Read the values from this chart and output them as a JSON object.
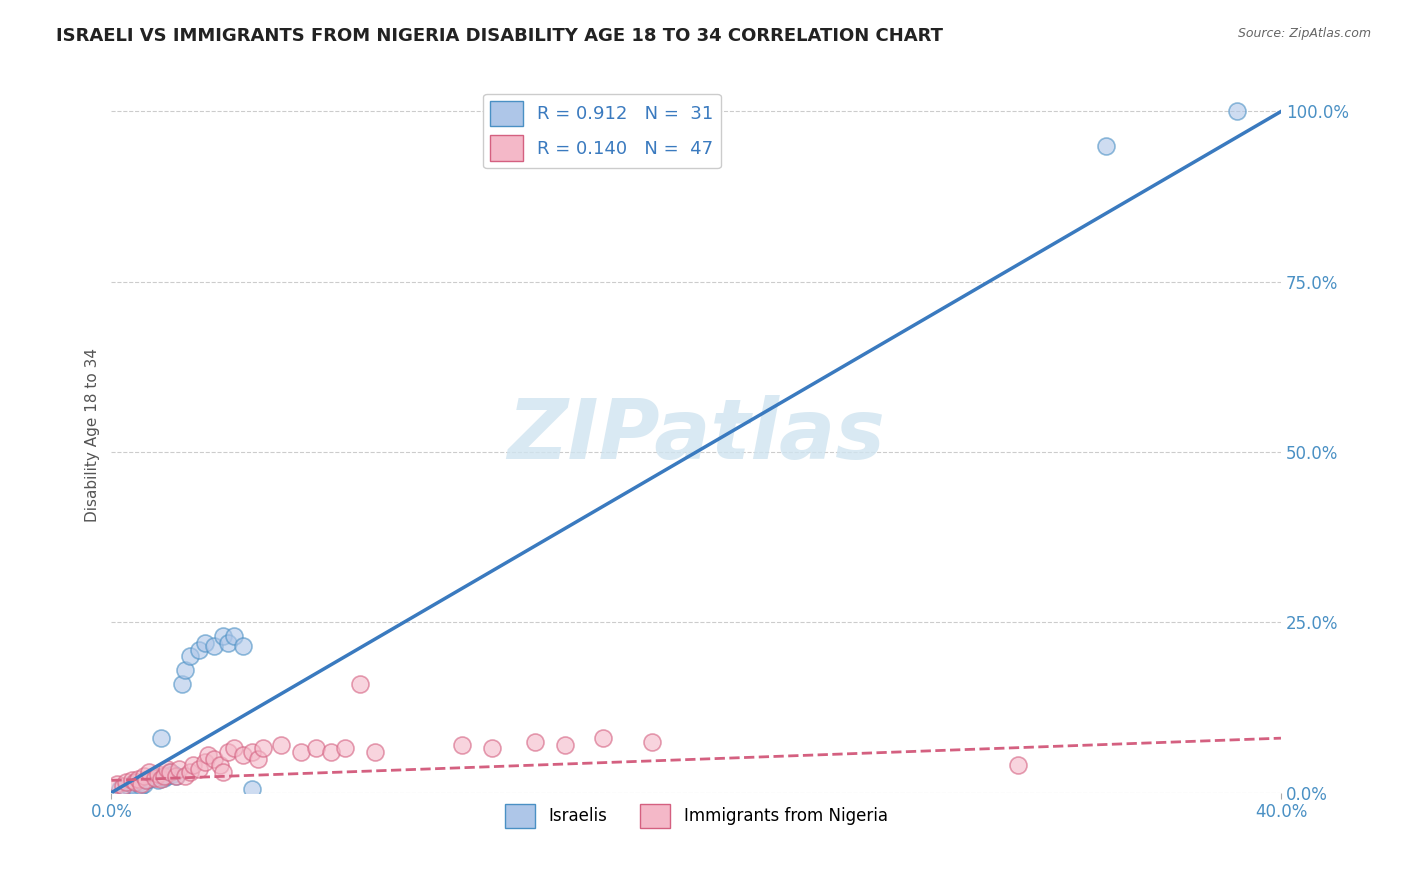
{
  "title": "ISRAELI VS IMMIGRANTS FROM NIGERIA DISABILITY AGE 18 TO 34 CORRELATION CHART",
  "source": "Source: ZipAtlas.com",
  "ylabel": "Disability Age 18 to 34",
  "xlim": [
    0.0,
    0.4
  ],
  "ylim": [
    0.0,
    1.05
  ],
  "xticks": [
    0.0,
    0.4
  ],
  "xtick_labels": [
    "0.0%",
    "40.0%"
  ],
  "yticks_right": [
    0.0,
    0.25,
    0.5,
    0.75,
    1.0
  ],
  "ytick_labels_right": [
    "0.0%",
    "25.0%",
    "50.0%",
    "75.0%",
    "100.0%"
  ],
  "legend_r1": "R = 0.912",
  "legend_n1": "N =  31",
  "legend_r2": "R = 0.140",
  "legend_n2": "N =  47",
  "blue_scatter_color": "#aec6e8",
  "blue_edge_color": "#4a90c4",
  "pink_scatter_color": "#f4b8c8",
  "pink_edge_color": "#d46080",
  "blue_line_color": "#3a7abf",
  "pink_line_color": "#d46080",
  "watermark_text": "ZIPatlas",
  "watermark_color": "#d0e4f0",
  "israelis_scatter_x": [
    0.003,
    0.005,
    0.006,
    0.007,
    0.008,
    0.009,
    0.01,
    0.011,
    0.012,
    0.013,
    0.015,
    0.016,
    0.017,
    0.018,
    0.019,
    0.02,
    0.021,
    0.022,
    0.024,
    0.025,
    0.027,
    0.03,
    0.032,
    0.035,
    0.038,
    0.04,
    0.042,
    0.045,
    0.048,
    0.34,
    0.385
  ],
  "israelis_scatter_y": [
    0.005,
    0.008,
    0.01,
    0.012,
    0.008,
    0.015,
    0.01,
    0.013,
    0.018,
    0.02,
    0.025,
    0.018,
    0.08,
    0.022,
    0.025,
    0.03,
    0.028,
    0.025,
    0.16,
    0.18,
    0.2,
    0.21,
    0.22,
    0.215,
    0.23,
    0.22,
    0.23,
    0.215,
    0.005,
    0.95,
    1.0
  ],
  "nigeria_scatter_x": [
    0.002,
    0.004,
    0.005,
    0.007,
    0.008,
    0.009,
    0.01,
    0.011,
    0.012,
    0.013,
    0.015,
    0.016,
    0.017,
    0.018,
    0.019,
    0.02,
    0.022,
    0.023,
    0.025,
    0.027,
    0.028,
    0.03,
    0.032,
    0.033,
    0.035,
    0.037,
    0.038,
    0.04,
    0.042,
    0.045,
    0.048,
    0.05,
    0.052,
    0.058,
    0.065,
    0.07,
    0.075,
    0.08,
    0.085,
    0.09,
    0.12,
    0.13,
    0.145,
    0.155,
    0.168,
    0.185,
    0.31
  ],
  "nigeria_scatter_y": [
    0.012,
    0.01,
    0.015,
    0.018,
    0.015,
    0.02,
    0.012,
    0.025,
    0.018,
    0.03,
    0.022,
    0.028,
    0.02,
    0.025,
    0.035,
    0.03,
    0.025,
    0.035,
    0.025,
    0.03,
    0.04,
    0.035,
    0.045,
    0.055,
    0.05,
    0.04,
    0.03,
    0.06,
    0.065,
    0.055,
    0.06,
    0.05,
    0.065,
    0.07,
    0.06,
    0.065,
    0.06,
    0.065,
    0.16,
    0.06,
    0.07,
    0.065,
    0.075,
    0.07,
    0.08,
    0.075,
    0.04
  ],
  "blue_line_x": [
    0.0,
    0.4
  ],
  "blue_line_y": [
    0.0,
    1.0
  ],
  "pink_line_x": [
    0.0,
    0.4
  ],
  "pink_line_y": [
    0.018,
    0.08
  ],
  "bg_color": "#ffffff",
  "title_fontsize": 13,
  "axis_label_fontsize": 11,
  "tick_fontsize": 12,
  "source_fontsize": 9
}
